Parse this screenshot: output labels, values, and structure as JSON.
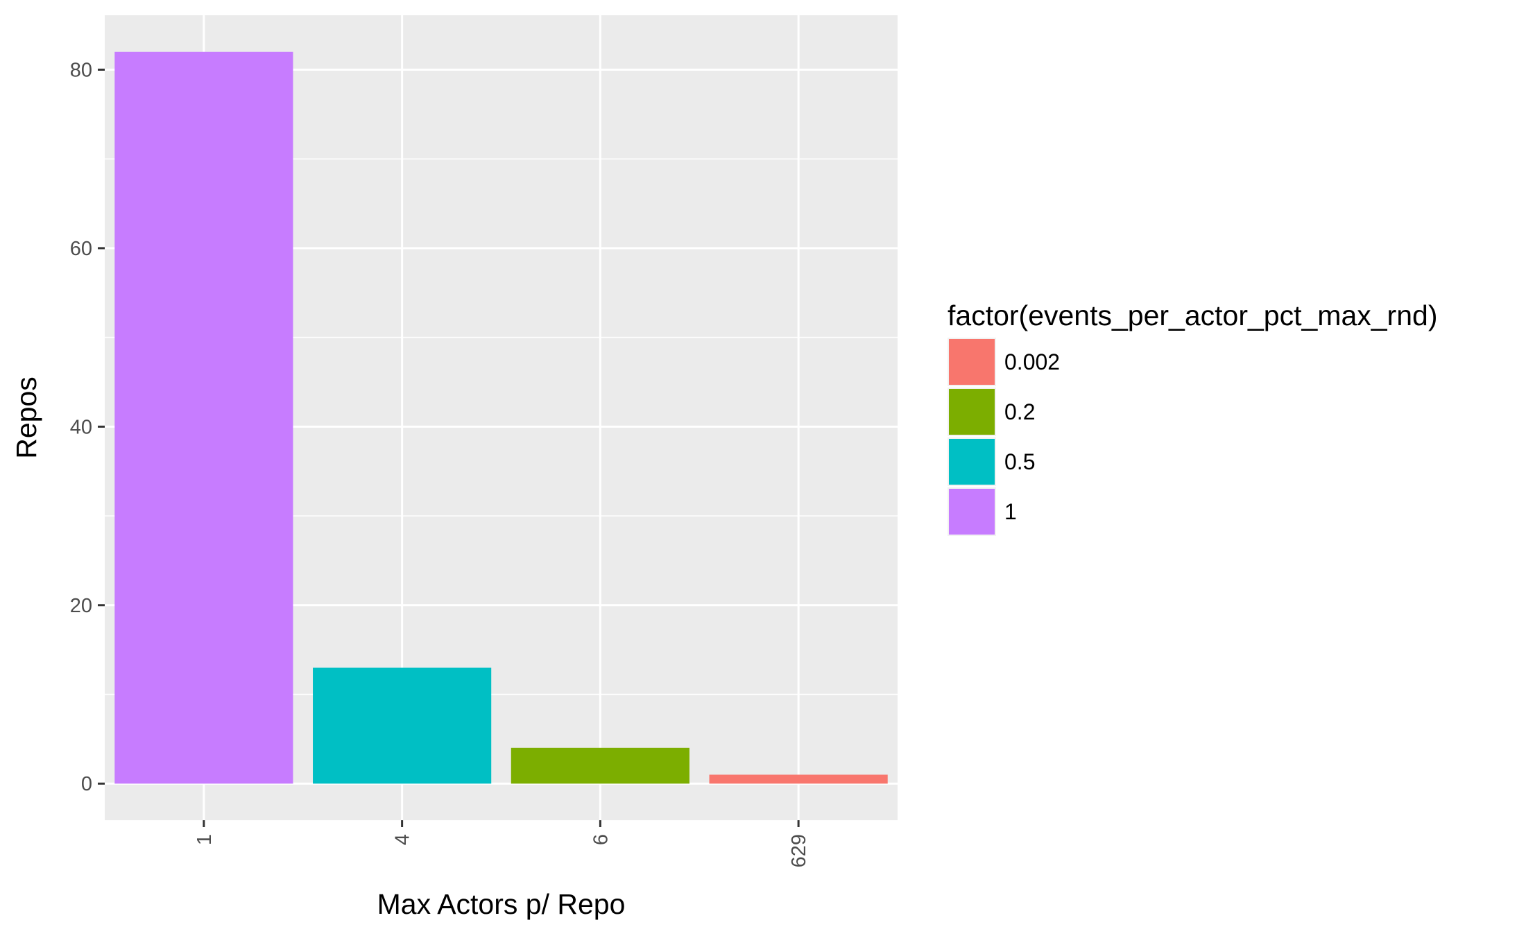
{
  "chart_data": {
    "type": "bar",
    "title": "",
    "xlabel": "Max Actors p/ Repo",
    "ylabel": "Repos",
    "categories": [
      "1",
      "4",
      "6",
      "629"
    ],
    "values": [
      82,
      13,
      4,
      1
    ],
    "fill_group": [
      "1",
      "0.5",
      "0.2",
      "0.002"
    ],
    "ylim": [
      -4.1,
      86.1
    ],
    "y_ticks": [
      0,
      20,
      40,
      60,
      80
    ],
    "grid": true,
    "x_tick_rotation": "vertical",
    "legend": {
      "title": "factor(events_per_actor_pct_max_rnd)",
      "placement": "right",
      "entries": [
        {
          "label": "0.002",
          "color": "#F8766D"
        },
        {
          "label": "0.2",
          "color": "#7CAE00"
        },
        {
          "label": "0.5",
          "color": "#00BFC4"
        },
        {
          "label": "1",
          "color": "#C77CFF"
        }
      ]
    },
    "panel_color": "#EBEBEB",
    "grid_color": "#FFFFFF",
    "axis_text_color": "#4D4D4D"
  }
}
